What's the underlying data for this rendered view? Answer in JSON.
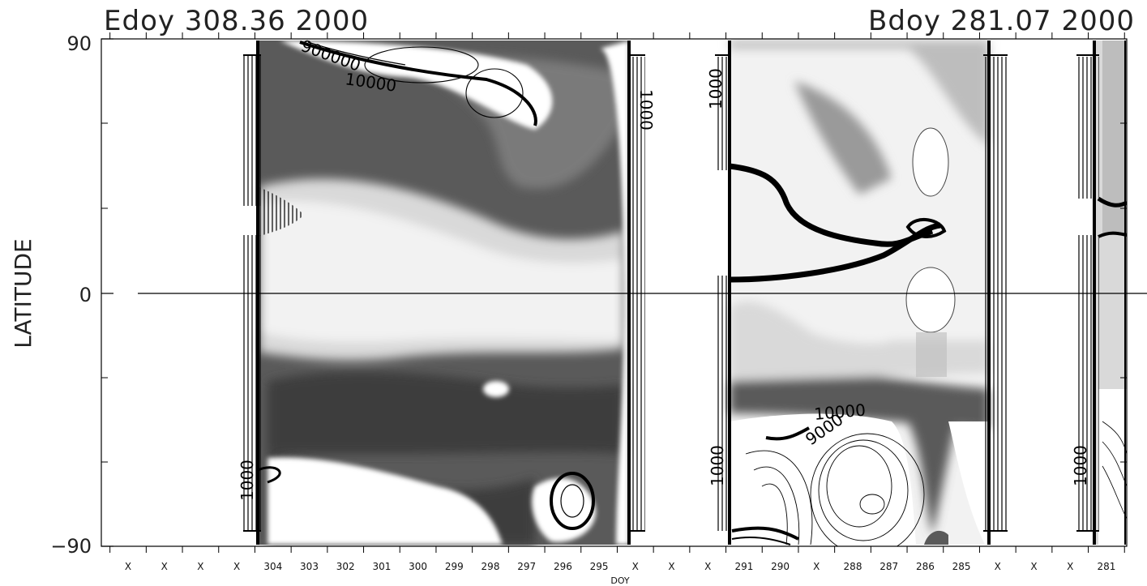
{
  "chart_data": {
    "type": "heatmap",
    "title_left": "Edoy 308.36 2000",
    "title_right": "Bdoy 281.07 2000",
    "xlabel": "DOY",
    "ylabel": "LATITUDE",
    "ylim": [
      -90,
      90
    ],
    "y_ticks": [
      "90",
      "0",
      "−90"
    ],
    "x_tick_labels": [
      "X",
      "X",
      "X",
      "X",
      "304",
      "303",
      "302",
      "301",
      "300",
      "299",
      "298",
      "297",
      "296",
      "295",
      "X",
      "X",
      "X",
      "291",
      "290",
      "X",
      "288",
      "287",
      "286",
      "285",
      "X",
      "X",
      "X",
      "281"
    ],
    "contour_labels": [
      "900000",
      "10000",
      "10000",
      "9000",
      "1000",
      "1000",
      "1000",
      "1000",
      "1000"
    ],
    "colormap": [
      "#ffffff",
      "#f2f2f2",
      "#d9d9d9",
      "#bdbdbd",
      "#9a9a9a",
      "#7a7a7a",
      "#5a5a5a",
      "#3e3e3e"
    ]
  }
}
